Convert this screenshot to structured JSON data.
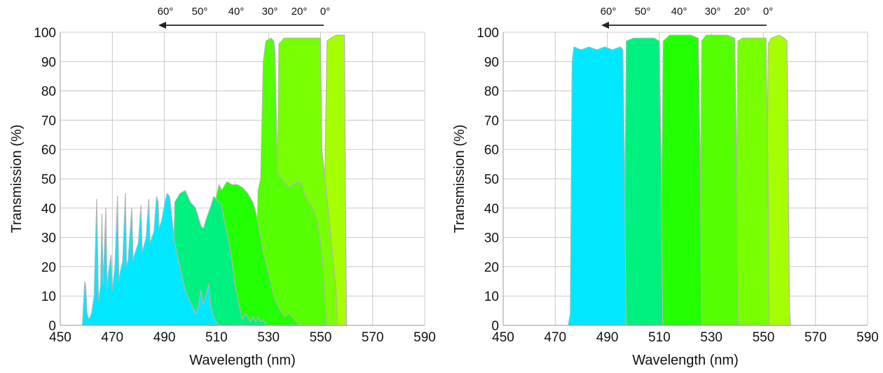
{
  "chart_data": [
    {
      "type": "area",
      "title": "",
      "xlabel": "Wavelength (nm)",
      "ylabel": "Transmission (%)",
      "xlim": [
        450,
        590
      ],
      "ylim": [
        0,
        100
      ],
      "xticks": [
        450,
        470,
        490,
        510,
        530,
        550,
        570,
        590
      ],
      "yticks": [
        0,
        10,
        20,
        30,
        40,
        50,
        60,
        70,
        80,
        90,
        100
      ],
      "grid": true,
      "legend": "none",
      "angle_annotation": {
        "labels": [
          "60°",
          "50°",
          "40°",
          "30°",
          "20°",
          "0°"
        ],
        "arrow_direction": "left"
      },
      "series": [
        {
          "color": "#a6ff00",
          "points": [
            [
              550,
              0
            ],
            [
              551.2,
              2
            ],
            [
              551.8,
              60
            ],
            [
              552.5,
              97
            ],
            [
              554,
              98
            ],
            [
              556,
              99
            ],
            [
              558,
              99
            ],
            [
              559.2,
              99
            ],
            [
              559.6,
              40
            ],
            [
              560,
              0
            ]
          ]
        },
        {
          "color": "#78ff00",
          "points": [
            [
              533,
              0
            ],
            [
              533.5,
              55
            ],
            [
              534,
              96
            ],
            [
              536,
              98
            ],
            [
              540,
              98
            ],
            [
              545,
              98
            ],
            [
              549,
              98
            ],
            [
              550,
              98
            ],
            [
              550.5,
              60
            ],
            [
              552,
              48
            ],
            [
              554,
              30
            ],
            [
              556,
              12
            ],
            [
              556.5,
              0
            ]
          ]
        },
        {
          "color": "#55ff00",
          "points": [
            [
              525,
              0
            ],
            [
              526,
              46
            ],
            [
              527,
              50
            ],
            [
              528,
              90
            ],
            [
              529,
              97
            ],
            [
              531,
              98
            ],
            [
              532,
              97
            ],
            [
              532.5,
              93
            ],
            [
              533.5,
              52
            ],
            [
              536,
              49
            ],
            [
              538,
              47
            ],
            [
              540,
              48
            ],
            [
              541,
              49
            ],
            [
              543,
              48
            ],
            [
              544,
              44
            ],
            [
              547,
              40
            ],
            [
              549,
              35
            ],
            [
              550,
              28
            ],
            [
              551,
              20
            ],
            [
              552,
              5
            ],
            [
              552.5,
              0
            ]
          ]
        },
        {
          "color": "#22ff00",
          "points": [
            [
              508,
              0
            ],
            [
              509,
              40
            ],
            [
              511,
              48
            ],
            [
              512,
              46
            ],
            [
              514,
              49
            ],
            [
              516,
              48
            ],
            [
              518,
              48
            ],
            [
              520,
              47
            ],
            [
              522,
              45
            ],
            [
              524,
              42
            ],
            [
              525,
              39
            ],
            [
              526,
              35
            ],
            [
              527,
              30
            ],
            [
              528,
              25
            ],
            [
              530,
              18
            ],
            [
              532,
              10
            ],
            [
              534,
              6
            ],
            [
              536,
              3
            ],
            [
              538,
              4
            ],
            [
              540,
              2
            ],
            [
              541.5,
              0
            ]
          ]
        },
        {
          "color": "#00f080",
          "points": [
            [
              493,
              0
            ],
            [
              494,
              42
            ],
            [
              496,
              45
            ],
            [
              498,
              46
            ],
            [
              500,
              42
            ],
            [
              502,
              40
            ],
            [
              504,
              34
            ],
            [
              505,
              33
            ],
            [
              506,
              36
            ],
            [
              508,
              41
            ],
            [
              509,
              44
            ],
            [
              510,
              43
            ],
            [
              512,
              41
            ],
            [
              513,
              36
            ],
            [
              515,
              28
            ],
            [
              516,
              22
            ],
            [
              517,
              15
            ],
            [
              518,
              10
            ],
            [
              519,
              6
            ],
            [
              520,
              2
            ],
            [
              521,
              4
            ],
            [
              522,
              3
            ],
            [
              523,
              1
            ],
            [
              524,
              3
            ],
            [
              525,
              1
            ],
            [
              526,
              3
            ],
            [
              527,
              1
            ],
            [
              528,
              2
            ],
            [
              529,
              0
            ]
          ]
        },
        {
          "color": "#00e8ff",
          "points": [
            [
              458.5,
              0
            ],
            [
              459.4,
              15
            ],
            [
              459.8,
              13
            ],
            [
              460.3,
              4
            ],
            [
              461,
              2
            ],
            [
              462,
              4
            ],
            [
              463,
              10
            ],
            [
              464,
              43
            ],
            [
              464.7,
              8
            ],
            [
              465.5,
              14
            ],
            [
              466,
              38
            ],
            [
              466.5,
              14
            ],
            [
              467.5,
              40
            ],
            [
              468,
              12
            ],
            [
              468.5,
              18
            ],
            [
              469.5,
              24
            ],
            [
              470,
              12
            ],
            [
              471,
              20
            ],
            [
              472,
              44
            ],
            [
              472.5,
              15
            ],
            [
              473,
              18
            ],
            [
              474,
              22
            ],
            [
              475,
              45
            ],
            [
              475.5,
              20
            ],
            [
              476,
              22
            ],
            [
              477.5,
              40
            ],
            [
              478,
              22
            ],
            [
              478.5,
              24
            ],
            [
              480,
              28
            ],
            [
              481,
              41
            ],
            [
              481.5,
              25
            ],
            [
              483,
              30
            ],
            [
              484,
              43
            ],
            [
              484.5,
              28
            ],
            [
              486,
              32
            ],
            [
              487,
              44
            ],
            [
              487.6,
              42
            ],
            [
              488,
              33
            ],
            [
              489,
              36
            ],
            [
              490,
              41
            ],
            [
              491,
              45
            ],
            [
              492,
              44
            ],
            [
              493,
              36
            ],
            [
              494,
              28
            ],
            [
              495,
              24
            ],
            [
              496,
              20
            ],
            [
              497,
              16
            ],
            [
              498,
              12
            ],
            [
              499,
              10
            ],
            [
              500,
              8
            ],
            [
              501,
              6
            ],
            [
              502,
              4
            ],
            [
              503,
              6
            ],
            [
              504,
              12
            ],
            [
              505,
              7
            ],
            [
              506,
              10
            ],
            [
              507,
              14
            ],
            [
              508,
              6
            ],
            [
              509,
              3
            ],
            [
              510,
              1
            ],
            [
              511,
              0
            ]
          ]
        }
      ]
    },
    {
      "type": "area",
      "title": "",
      "xlabel": "Wavelength (nm)",
      "ylabel": "Transmission (%)",
      "xlim": [
        450,
        590
      ],
      "ylim": [
        0,
        100
      ],
      "xticks": [
        450,
        470,
        490,
        510,
        530,
        550,
        570,
        590
      ],
      "yticks": [
        0,
        10,
        20,
        30,
        40,
        50,
        60,
        70,
        80,
        90,
        100
      ],
      "grid": true,
      "legend": "none",
      "angle_annotation": {
        "labels": [
          "60°",
          "50°",
          "40°",
          "30°",
          "20°",
          "0°"
        ],
        "arrow_direction": "left"
      },
      "series": [
        {
          "color": "#a6ff00",
          "points": [
            [
              551,
              0
            ],
            [
              551.4,
              30
            ],
            [
              551.8,
              96
            ],
            [
              553,
              98
            ],
            [
              556,
              99
            ],
            [
              558,
              98
            ],
            [
              559,
              97
            ],
            [
              559.5,
              60
            ],
            [
              560,
              5
            ],
            [
              560.5,
              0
            ]
          ]
        },
        {
          "color": "#78ff00",
          "points": [
            [
              539,
              0
            ],
            [
              539.6,
              35
            ],
            [
              540.2,
              97
            ],
            [
              542,
              98
            ],
            [
              545,
              98
            ],
            [
              549,
              98
            ],
            [
              551,
              98
            ],
            [
              551.8,
              50
            ],
            [
              552.2,
              0
            ]
          ]
        },
        {
          "color": "#55ff00",
          "points": [
            [
              525,
              0
            ],
            [
              525.7,
              35
            ],
            [
              526.3,
              97
            ],
            [
              528,
              99
            ],
            [
              532,
              99
            ],
            [
              536,
              99
            ],
            [
              539,
              98
            ],
            [
              539.8,
              50
            ],
            [
              540.3,
              0
            ]
          ]
        },
        {
          "color": "#22ff00",
          "points": [
            [
              510,
              0
            ],
            [
              510.8,
              35
            ],
            [
              511.5,
              97
            ],
            [
              514,
              99
            ],
            [
              518,
              99
            ],
            [
              522,
              99
            ],
            [
              525,
              98
            ],
            [
              525.8,
              50
            ],
            [
              526.3,
              0
            ]
          ]
        },
        {
          "color": "#00f080",
          "points": [
            [
              496,
              0
            ],
            [
              496.7,
              35
            ],
            [
              497.3,
              97
            ],
            [
              500,
              98
            ],
            [
              504,
              98
            ],
            [
              508,
              98
            ],
            [
              510,
              97
            ],
            [
              510.8,
              50
            ],
            [
              511.3,
              0
            ]
          ]
        },
        {
          "color": "#00e8ff",
          "points": [
            [
              475,
              0
            ],
            [
              475.8,
              4
            ],
            [
              476.5,
              90
            ],
            [
              477.2,
              95
            ],
            [
              480,
              94
            ],
            [
              483,
              95
            ],
            [
              486,
              94
            ],
            [
              489,
              95
            ],
            [
              492,
              94
            ],
            [
              495,
              95
            ],
            [
              496,
              94
            ],
            [
              496.7,
              50
            ],
            [
              497.2,
              0
            ]
          ]
        }
      ]
    }
  ]
}
